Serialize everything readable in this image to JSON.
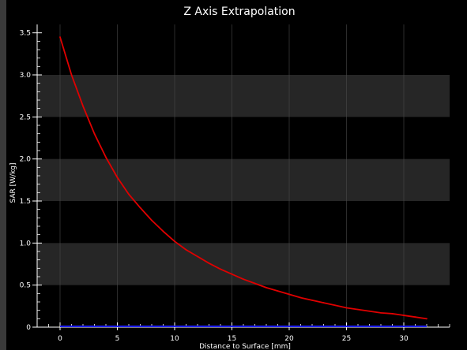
{
  "chart_data": {
    "type": "line",
    "title": "Z Axis Extrapolation",
    "xlabel": "Distance to Surface [mm]",
    "ylabel": "SAR [W/kg]",
    "xlim": [
      -2,
      34
    ],
    "ylim": [
      0,
      3.6
    ],
    "x_ticks": [
      0,
      5,
      10,
      15,
      20,
      25,
      30
    ],
    "y_ticks": [
      0,
      0.5,
      1.0,
      1.5,
      2.0,
      2.5,
      3.0,
      3.5
    ],
    "y_tick_labels": [
      "0",
      "0.5",
      "1.0",
      "1.5",
      "2.0",
      "2.5",
      "3.0",
      "3.5"
    ],
    "grid": true,
    "background_bands": true,
    "series": [
      {
        "color": "#e00000",
        "x": [
          0,
          1,
          2,
          3,
          4,
          5,
          6,
          7,
          8,
          9,
          10,
          11,
          12,
          13,
          14,
          15,
          16,
          17,
          18,
          19,
          20,
          21,
          22,
          23,
          24,
          25,
          26,
          27,
          28,
          29,
          30,
          31,
          32
        ],
        "y": [
          3.45,
          3.0,
          2.63,
          2.3,
          2.02,
          1.78,
          1.58,
          1.42,
          1.27,
          1.14,
          1.02,
          0.92,
          0.84,
          0.76,
          0.69,
          0.63,
          0.57,
          0.52,
          0.47,
          0.43,
          0.39,
          0.35,
          0.32,
          0.29,
          0.26,
          0.23,
          0.21,
          0.19,
          0.17,
          0.16,
          0.14,
          0.12,
          0.1
        ]
      }
    ],
    "baseline_color": "#2020ff"
  },
  "colors": {
    "background": "#000000",
    "band": "#262626",
    "grid": "#4a4a4a",
    "axis": "#ffffff"
  }
}
